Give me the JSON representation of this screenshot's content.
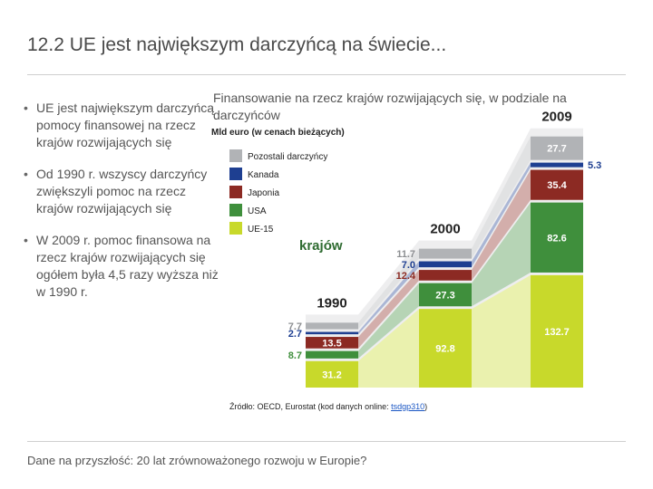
{
  "slide": {
    "title": "12.2 UE jest największym darczyńcą na świecie...",
    "bullets": [
      "UE jest największym darczyńcą pomocy finansowej na rzecz krajów rozwijających się",
      "Od 1990 r. wszyscy darczyńcy zwiększyli pomoc na rzecz krajów rozwijających się",
      "W 2009 r. pomoc finansowa na rzecz krajów rozwijających się ogółem była 4,5 razy wyższa niż w 1990 r."
    ],
    "footer": "Dane na przyszłość: 20 lat zrównoważonego rozwoju w Europie?"
  },
  "chart_data": {
    "type": "area",
    "title": "Finansowanie na rzecz krajów rozwijających się, w podziale na darczyńców",
    "unit": "Mld euro (w cenach bieżących)",
    "overlay_text": "krajów",
    "x": [
      "1990",
      "2000",
      "2009"
    ],
    "series": [
      {
        "name": "UE-15",
        "values": [
          31.2,
          92.8,
          132.7
        ],
        "color": "#c8d92b",
        "label_color": "#ffffff"
      },
      {
        "name": "USA",
        "values": [
          8.7,
          27.3,
          82.6
        ],
        "color": "#3f8f3c",
        "label_color": "#ffffff"
      },
      {
        "name": "Japonia",
        "values": [
          13.5,
          12.4,
          35.4
        ],
        "color": "#8c2a23",
        "label_color": "#ffffff"
      },
      {
        "name": "Kanada",
        "values": [
          2.7,
          7.0,
          5.3
        ],
        "color": "#1e3f91",
        "label_color": "#1e3f91"
      },
      {
        "name": "Pozostali darczyńcy",
        "values": [
          7.7,
          11.7,
          27.7
        ],
        "color": "#b1b3b6",
        "label_color": "#ffffff"
      }
    ],
    "source": {
      "prefix": "Źródło: OECD, Eurostat (kod danych online: ",
      "code": "tsdgp310",
      "suffix": ")"
    }
  }
}
